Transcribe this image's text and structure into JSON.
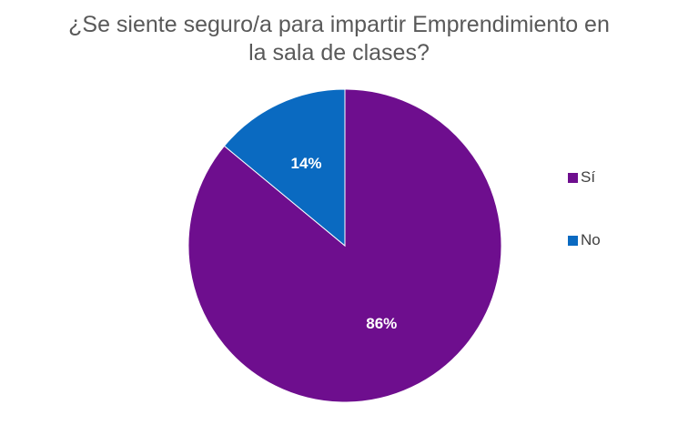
{
  "chart_data": {
    "type": "pie",
    "title": "¿Se siente seguro/a para impartir Emprendimiento en la sala de clases?",
    "title_lines": [
      "¿Se siente seguro/a para impartir Emprendimiento en",
      "la sala de clases?"
    ],
    "categories": [
      "Sí",
      "No"
    ],
    "values": [
      86,
      14
    ],
    "data_labels": [
      "86%",
      "14%"
    ],
    "colors": [
      "#6E0E8E",
      "#0A6AC1"
    ],
    "legend_position": "right",
    "start_angle": "top, clockwise"
  }
}
